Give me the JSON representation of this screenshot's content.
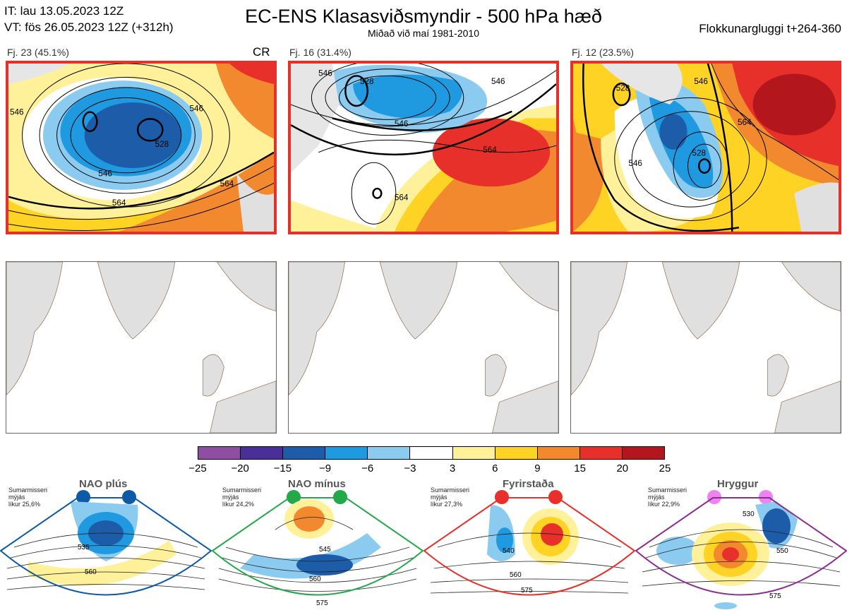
{
  "header": {
    "it_line": "IT: lau 13.05.2023 12Z",
    "vt_line": "VT: fös 26.05.2023 12Z  (+312h)",
    "title": "EC-ENS Klasasviðsmyndir - 500 hPa hæð",
    "subtitle": "Miðað við maí 1981-2010",
    "window": "Flokkunargluggi t+264-360"
  },
  "clusters": [
    {
      "label": "Fj. 23 (45.1%)",
      "badge": "CR",
      "contours": [
        "546",
        "528",
        "546",
        "564",
        "564",
        "546"
      ]
    },
    {
      "label": "Fj. 16 (31.4%)",
      "contours": [
        "546",
        "528",
        "546",
        "564",
        "564",
        "546"
      ]
    },
    {
      "label": "Fj. 12 (23.5%)",
      "contours": [
        "546",
        "528",
        "546",
        "564",
        "528"
      ]
    }
  ],
  "colorbar": {
    "colors": [
      "#8e4fa3",
      "#4b2f98",
      "#1d5ca8",
      "#1f9ae0",
      "#8ccbf0",
      "#ffffff",
      "#fff19a",
      "#ffd324",
      "#f3892f",
      "#e8302a",
      "#b3161c"
    ],
    "ticks": [
      "−25",
      "−20",
      "−15",
      "−9",
      "−6",
      "−3",
      "3",
      "6",
      "9",
      "15",
      "20",
      "25"
    ]
  },
  "regimes": [
    {
      "title": "NAO plús",
      "season": "Sumarmisseri",
      "smooth": "mýjás",
      "prob": "líkur 25,6%",
      "color": "#0d5aa7",
      "labels": [
        "535",
        "560"
      ]
    },
    {
      "title": "NAO mínus",
      "season": "Sumarmisseri",
      "smooth": "mýjás",
      "prob": "líkur 24,2%",
      "color": "#23a84a",
      "labels": [
        "545",
        "560",
        "575"
      ]
    },
    {
      "title": "Fyrirstaða",
      "season": "Sumarmisseri",
      "smooth": "mýjás",
      "prob": "líkur 27,3%",
      "color": "#e8302a",
      "labels": [
        "540",
        "560",
        "575"
      ]
    },
    {
      "title": "Hryggur",
      "season": "Sumarmisseri",
      "smooth": "mýjás",
      "prob": "líkur 22,9%",
      "color": "#8b2d91",
      "labels": [
        "530",
        "550",
        "575"
      ]
    }
  ]
}
